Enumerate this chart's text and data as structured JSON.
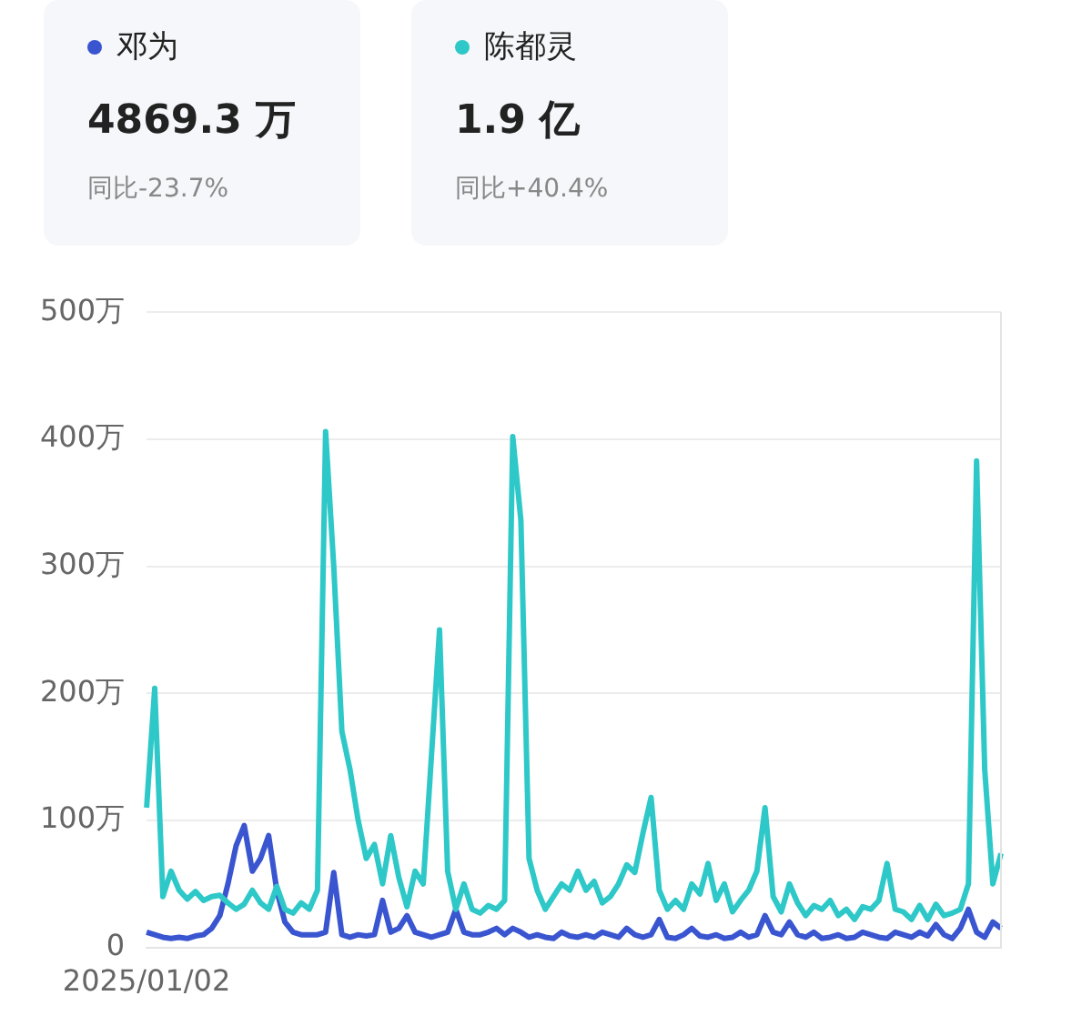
{
  "chart_data": {
    "type": "line",
    "categories": [
      "2025/01/02",
      null,
      null,
      null,
      null,
      null,
      null,
      null,
      null,
      null,
      null,
      null,
      null,
      null,
      null,
      null,
      null,
      null,
      null,
      null,
      null,
      null,
      null,
      null,
      null,
      null,
      null,
      null,
      null,
      null,
      null,
      null,
      null,
      null,
      null,
      null,
      null,
      null,
      null,
      null,
      null,
      null,
      null,
      null,
      null,
      null,
      null,
      null,
      null,
      null,
      null,
      null,
      null,
      null,
      null,
      null,
      null,
      null,
      null,
      null,
      null,
      null,
      null,
      null,
      null,
      null,
      null,
      null,
      null,
      null,
      null,
      null,
      null,
      null,
      null,
      null,
      null,
      null,
      null,
      null,
      null,
      null,
      null,
      null,
      null,
      null,
      null,
      null,
      null,
      null,
      null,
      null,
      null,
      null,
      null,
      null,
      null,
      null,
      null,
      null,
      null,
      null,
      null,
      null,
      null,
      null
    ],
    "series": [
      {
        "name": "邓为",
        "color": "#3a55d0",
        "values": [
          12,
          10,
          8,
          7,
          8,
          7,
          9,
          10,
          15,
          25,
          50,
          80,
          96,
          60,
          70,
          88,
          45,
          20,
          12,
          10,
          10,
          10,
          12,
          59,
          10,
          8,
          10,
          9,
          10,
          37,
          12,
          15,
          25,
          12,
          10,
          8,
          10,
          12,
          30,
          12,
          10,
          10,
          12,
          15,
          10,
          15,
          12,
          8,
          10,
          8,
          7,
          12,
          9,
          8,
          10,
          8,
          12,
          10,
          8,
          15,
          10,
          8,
          10,
          22,
          8,
          7,
          10,
          15,
          9,
          8,
          10,
          7,
          8,
          12,
          8,
          10,
          25,
          12,
          10,
          20,
          10,
          8,
          12,
          7,
          8,
          10,
          7,
          8,
          12,
          10,
          8,
          7,
          12,
          10,
          8,
          12,
          9,
          18,
          10,
          7,
          15,
          30,
          12,
          8,
          20,
          15
        ]
      },
      {
        "name": "陈都灵",
        "color": "#2ec8c8",
        "values": [
          110,
          204,
          40,
          60,
          45,
          38,
          44,
          37,
          40,
          41,
          35,
          30,
          34,
          45,
          35,
          30,
          48,
          30,
          27,
          35,
          30,
          45,
          406,
          300,
          170,
          140,
          100,
          70,
          81,
          50,
          88,
          55,
          32,
          60,
          50,
          150,
          250,
          60,
          30,
          50,
          30,
          27,
          33,
          30,
          37,
          402,
          336,
          70,
          45,
          30,
          40,
          50,
          45,
          60,
          45,
          52,
          35,
          40,
          50,
          65,
          59,
          90,
          118,
          45,
          30,
          37,
          30,
          50,
          42,
          66,
          37,
          50,
          28,
          37,
          45,
          60,
          110,
          40,
          28,
          50,
          35,
          25,
          33,
          30,
          37,
          25,
          30,
          22,
          32,
          30,
          37,
          66,
          30,
          28,
          22,
          33,
          22,
          34,
          25,
          27,
          30,
          50,
          383,
          140,
          50,
          74
        ]
      }
    ],
    "ylim": [
      0,
      500
    ],
    "yticks": [
      0,
      {
        "value": 100,
        "label": "100万"
      },
      {
        "value": 200,
        "label": "200万"
      },
      {
        "value": 300,
        "label": "300万"
      },
      {
        "value": 400,
        "label": "400万"
      },
      {
        "value": 500,
        "label": "500万"
      }
    ],
    "grid": "y",
    "legend": "top",
    "marker": "none",
    "line_style": "solid",
    "annotations": [
      "4869.3 万",
      "同比-23.7%",
      "1.9 亿",
      "同比+40.4%"
    ]
  }
}
